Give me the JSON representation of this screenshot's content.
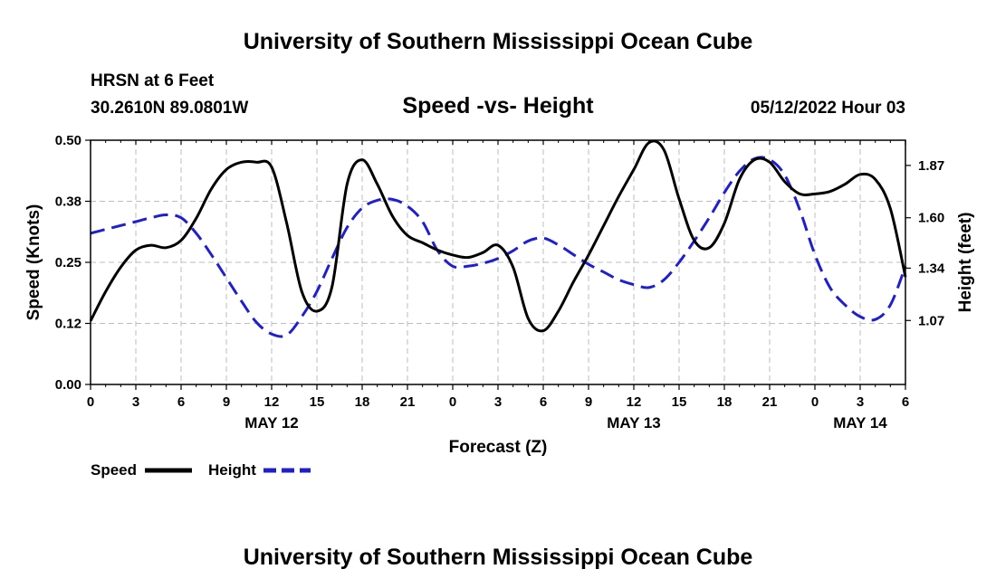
{
  "header": {
    "title": "University of Southern Mississippi Ocean Cube",
    "station": "HRSN at 6 Feet",
    "coords": "30.2610N  89.0801W",
    "datetime": "05/12/2022 Hour 03",
    "footer_title": "University of Southern Mississippi Ocean Cube"
  },
  "colors": {
    "speed": "#000000",
    "height": "#1f1fd0",
    "grid": "#bdbdbd"
  },
  "chart_data": {
    "type": "line",
    "title": "Speed -vs- Height",
    "xlabel": "Forecast (Z)",
    "ylabel": "Speed (Knots)",
    "y2label": "Height (feet)",
    "xlim": [
      0,
      54
    ],
    "ylim": [
      0,
      0.5
    ],
    "y2lim": [
      0.74,
      2.0
    ],
    "x_ticks": [
      0,
      3,
      6,
      9,
      12,
      15,
      18,
      21,
      24,
      27,
      30,
      33,
      36,
      39,
      42,
      45,
      48,
      51,
      54
    ],
    "x_tick_labels": [
      "0",
      "3",
      "6",
      "9",
      "12",
      "15",
      "18",
      "21",
      "0",
      "3",
      "6",
      "9",
      "12",
      "15",
      "18",
      "21",
      "0",
      "3",
      "6"
    ],
    "y_ticks": [
      0.0,
      0.125,
      0.25,
      0.375,
      0.5
    ],
    "y_tick_labels": [
      "0.00",
      "0.12",
      "0.25",
      "0.38",
      "0.50"
    ],
    "y2_ticks": [
      1.07,
      1.34,
      1.6,
      1.87
    ],
    "y2_tick_labels": [
      "1.07",
      "1.34",
      "1.60",
      "1.87"
    ],
    "date_labels": [
      {
        "label": "MAY 12",
        "x": 12
      },
      {
        "label": "MAY 13",
        "x": 36
      },
      {
        "label": "MAY 14",
        "x": 51
      }
    ],
    "legend": [
      {
        "label": "Speed",
        "series": "speed"
      },
      {
        "label": "Height",
        "series": "height"
      }
    ],
    "series": [
      {
        "name": "Speed",
        "key": "speed",
        "axis": "left",
        "x": [
          0,
          1,
          2,
          3,
          4,
          5,
          6,
          7,
          8,
          9,
          10,
          11,
          12,
          13,
          14,
          15,
          16,
          17,
          18,
          19,
          20,
          21,
          22,
          23,
          24,
          25,
          26,
          27,
          28,
          29,
          30,
          31,
          32,
          33,
          34,
          35,
          36,
          37,
          38,
          39,
          40,
          41,
          42,
          43,
          44,
          45,
          46,
          47,
          48,
          49,
          50,
          51,
          52,
          53,
          54
        ],
        "values": [
          0.13,
          0.19,
          0.24,
          0.275,
          0.285,
          0.28,
          0.295,
          0.34,
          0.4,
          0.44,
          0.455,
          0.455,
          0.445,
          0.33,
          0.19,
          0.15,
          0.2,
          0.41,
          0.46,
          0.41,
          0.345,
          0.305,
          0.29,
          0.275,
          0.265,
          0.26,
          0.27,
          0.285,
          0.24,
          0.135,
          0.11,
          0.15,
          0.21,
          0.265,
          0.325,
          0.385,
          0.44,
          0.495,
          0.48,
          0.38,
          0.295,
          0.28,
          0.33,
          0.42,
          0.46,
          0.455,
          0.415,
          0.39,
          0.39,
          0.395,
          0.41,
          0.43,
          0.42,
          0.36,
          0.22
        ]
      },
      {
        "name": "Height",
        "key": "height",
        "axis": "right",
        "x": [
          0,
          1,
          2,
          3,
          4,
          5,
          6,
          7,
          8,
          9,
          10,
          11,
          12,
          13,
          14,
          15,
          16,
          17,
          18,
          19,
          20,
          21,
          22,
          23,
          24,
          25,
          26,
          27,
          28,
          29,
          30,
          31,
          32,
          33,
          34,
          35,
          36,
          37,
          38,
          39,
          40,
          41,
          42,
          43,
          44,
          45,
          46,
          47,
          48,
          49,
          50,
          51,
          52,
          53,
          54
        ],
        "values": [
          1.52,
          1.54,
          1.56,
          1.58,
          1.6,
          1.615,
          1.6,
          1.52,
          1.41,
          1.29,
          1.17,
          1.06,
          1.0,
          0.995,
          1.09,
          1.22,
          1.39,
          1.55,
          1.65,
          1.69,
          1.695,
          1.66,
          1.58,
          1.43,
          1.35,
          1.35,
          1.365,
          1.39,
          1.43,
          1.48,
          1.495,
          1.46,
          1.41,
          1.36,
          1.32,
          1.28,
          1.255,
          1.24,
          1.28,
          1.37,
          1.48,
          1.6,
          1.73,
          1.84,
          1.905,
          1.9,
          1.82,
          1.64,
          1.41,
          1.24,
          1.15,
          1.09,
          1.075,
          1.15,
          1.35
        ]
      }
    ]
  }
}
